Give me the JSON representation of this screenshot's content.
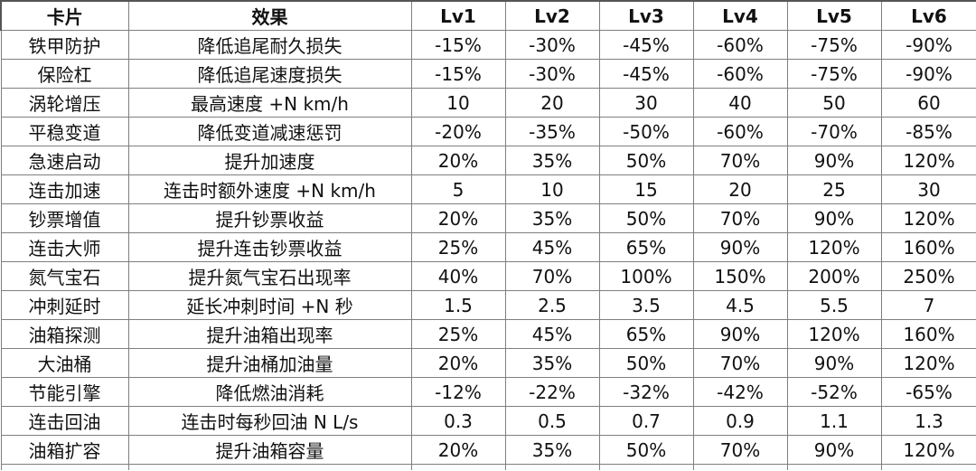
{
  "table": {
    "headers": [
      "卡片",
      "效果",
      "Lv1",
      "Lv2",
      "Lv3",
      "Lv4",
      "Lv5",
      "Lv6"
    ],
    "rows": [
      [
        "铁甲防护",
        "降低追尾耐久损失",
        "-15%",
        "-30%",
        "-45%",
        "-60%",
        "-75%",
        "-90%"
      ],
      [
        "保险杠",
        "降低追尾速度损失",
        "-15%",
        "-30%",
        "-45%",
        "-60%",
        "-75%",
        "-90%"
      ],
      [
        "涡轮增压",
        "最高速度 +N km/h",
        "10",
        "20",
        "30",
        "40",
        "50",
        "60"
      ],
      [
        "平稳变道",
        "降低变道减速惩罚",
        "-20%",
        "-35%",
        "-50%",
        "-60%",
        "-70%",
        "-85%"
      ],
      [
        "急速启动",
        "提升加速度",
        "20%",
        "35%",
        "50%",
        "70%",
        "90%",
        "120%"
      ],
      [
        "连击加速",
        "连击时额外速度 +N km/h",
        "5",
        "10",
        "15",
        "20",
        "25",
        "30"
      ],
      [
        "钞票增值",
        "提升钞票收益",
        "20%",
        "35%",
        "50%",
        "70%",
        "90%",
        "120%"
      ],
      [
        "连击大师",
        "提升连击钞票收益",
        "25%",
        "45%",
        "65%",
        "90%",
        "120%",
        "160%"
      ],
      [
        "氮气宝石",
        "提升氮气宝石出现率",
        "40%",
        "70%",
        "100%",
        "150%",
        "200%",
        "250%"
      ],
      [
        "冲刺延时",
        "延长冲刺时间 +N 秒",
        "1.5",
        "2.5",
        "3.5",
        "4.5",
        "5.5",
        "7"
      ],
      [
        "油箱探测",
        "提升油箱出现率",
        "25%",
        "45%",
        "65%",
        "90%",
        "120%",
        "160%"
      ],
      [
        "大油桶",
        "提升油桶加油量",
        "20%",
        "35%",
        "50%",
        "70%",
        "90%",
        "120%"
      ],
      [
        "节能引擎",
        "降低燃油消耗",
        "-12%",
        "-22%",
        "-32%",
        "-42%",
        "-52%",
        "-65%"
      ],
      [
        "连击回油",
        "连击时每秒回油 N L/s",
        "0.3",
        "0.5",
        "0.7",
        "0.9",
        "1.1",
        "1.3"
      ],
      [
        "油箱扩容",
        "提升油箱容量",
        "20%",
        "35%",
        "50%",
        "70%",
        "90%",
        "120%"
      ]
    ]
  }
}
